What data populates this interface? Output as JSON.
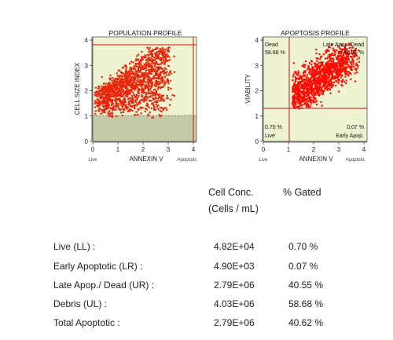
{
  "chart_data": [
    {
      "type": "scatter",
      "title": "POPULATION PROFILE",
      "xlabel": "ANNEXIN V",
      "ylabel": "CELL SIZE INDEX",
      "xlim": [
        0,
        4
      ],
      "ylim": [
        0,
        4
      ],
      "x_ticks": [
        "0",
        "1",
        "2",
        "3",
        "4"
      ],
      "y_ticks": [
        "0",
        "1",
        "2",
        "3",
        "4"
      ],
      "x_end_labels": [
        "Live",
        "Apoptotic"
      ],
      "gates": {
        "cell_threshold_y": 1.0
      },
      "colors": {
        "points": "#e8260c",
        "background": "#eef3d2",
        "debris_band": "#c3cba6",
        "gate_line": "#c0141c"
      }
    },
    {
      "type": "scatter",
      "title": "APOPTOSIS PROFILE",
      "xlabel": "ANNEXIN V",
      "ylabel": "VIABILITY",
      "xlim": [
        0,
        4
      ],
      "ylim": [
        0,
        4
      ],
      "x_ticks": [
        "0",
        "1",
        "2",
        "3",
        "4"
      ],
      "y_ticks": [
        "0",
        "1",
        "2",
        "3",
        "4"
      ],
      "x_end_labels": [
        "Live",
        "Apoptotic"
      ],
      "gates": {
        "x": 1.1,
        "y": 1.3
      },
      "quadrants": {
        "ul": {
          "label": "Dead",
          "percent": "58.68 %"
        },
        "ur": {
          "label": "Late Apop./Dead",
          "percent": "40.55 %"
        },
        "ll": {
          "label": "Live",
          "percent": "0.70 %"
        },
        "lr": {
          "label": "Early Apop.",
          "percent": "0.07 %"
        }
      },
      "colors": {
        "points": "#ff0a00",
        "background": "#eef3d2",
        "gate_line": "#c0141c"
      }
    }
  ],
  "table": {
    "col1_header_line1": "Cell Conc.",
    "col1_header_line2": "(Cells / mL)",
    "col2_header": "% Gated",
    "rows": [
      {
        "label": "Live (LL) :",
        "conc": "4.82E+04",
        "gated": "0.70 %"
      },
      {
        "label": "Early Apoptotic (LR) :",
        "conc": "4.90E+03",
        "gated": "0.07 %"
      },
      {
        "label": "Late Apop./ Dead (UR) :",
        "conc": "2.79E+06",
        "gated": "40.55 %"
      },
      {
        "label": "Debris (UL) :",
        "conc": "4.03E+06",
        "gated": "58.68 %"
      },
      {
        "label": "Total Apoptotic :",
        "conc": "2.79E+06",
        "gated": "40.62 %"
      }
    ]
  }
}
